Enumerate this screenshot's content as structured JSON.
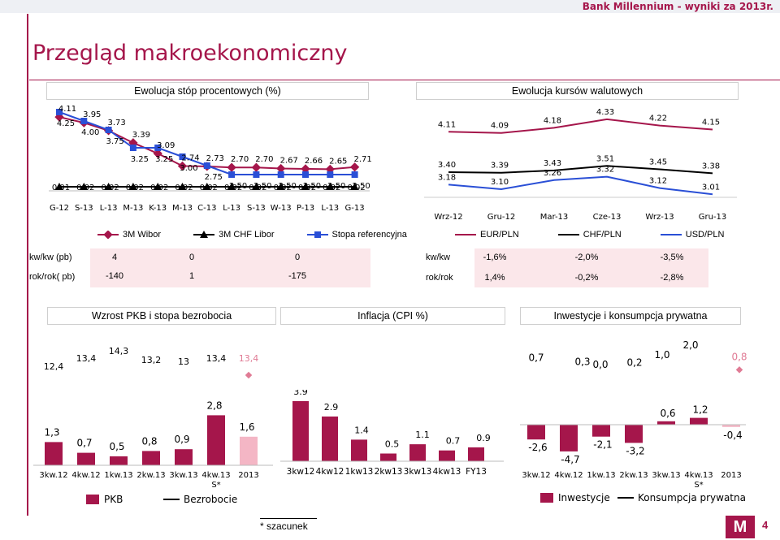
{
  "header": {
    "bank_text": "Bank Millennium - wyniki za 2013r."
  },
  "page_title": "Przegląd makroekonomiczny",
  "rates": {
    "title": "Ewolucja stóp procentowych (%)",
    "row_labels": [
      "kw/kw (pb)",
      "rok/rok( pb)"
    ],
    "rows": [
      [
        "4",
        "0",
        "0"
      ],
      [
        "-140",
        "1",
        "-175"
      ]
    ]
  },
  "fx": {
    "title": "Ewolucja kursów walutowych",
    "row_labels": [
      "kw/kw",
      "rok/rok"
    ],
    "rows": [
      [
        "-1,6%",
        "-2,0%",
        "-3,5%"
      ],
      [
        "1,4%",
        "-0,2%",
        "-2,8%"
      ]
    ]
  },
  "panels": {
    "gdp_title": "Wzrost PKB i stopa bezrobocia",
    "cpi_title": "Inflacja (CPI %)",
    "inv_title": "Inwestycje i konsumpcja prywatna"
  },
  "footnote": "* szacunek",
  "logo": "M",
  "page_number": "4",
  "colors": {
    "brand": "#a5164b",
    "blue": "#2a4fd6",
    "black": "#000000",
    "light_pink": "#f4b6c5"
  },
  "chart_data": [
    {
      "type": "line",
      "categories": [
        "G-12",
        "S-13",
        "L-13",
        "M-13",
        "K-13",
        "M-13",
        "C-13",
        "L-13",
        "S-13",
        "W-13",
        "P-13",
        "L-13",
        "G-13"
      ],
      "series": [
        {
          "name": "3M Wibor",
          "marker": "diamond",
          "color": "#a5164b",
          "values": [
            4.11,
            3.95,
            3.73,
            3.39,
            3.09,
            2.74,
            2.73,
            2.7,
            2.7,
            2.67,
            2.66,
            2.65,
            2.71
          ]
        },
        {
          "name": "3M CHF Libor",
          "marker": "triangle",
          "color": "#000000",
          "values": [
            0.01,
            0.02,
            0.02,
            0.02,
            0.02,
            0.02,
            0.02,
            0.02,
            0.02,
            0.02,
            0.02,
            0.02,
            0.02
          ]
        },
        {
          "name": "Stopa referencyjna",
          "marker": "square",
          "color": "#2a4fd6",
          "values": [
            4.25,
            4.0,
            3.75,
            3.25,
            3.25,
            3.0,
            2.75,
            2.5,
            2.5,
            2.5,
            2.5,
            2.5,
            2.5
          ]
        }
      ],
      "labels": [
        [
          "4.11",
          "3.95",
          "3.73",
          "3.39",
          "3.09",
          "2.74",
          "2.73",
          "2.70",
          "2.70",
          "2.67",
          "2.66",
          "2.65",
          "2.71"
        ],
        [
          "0.01",
          "0.02",
          "0.02",
          "0.02",
          "0.02",
          "0.02",
          "0.02",
          "0.02",
          "0.02",
          "0.02",
          "0.02",
          "0.02",
          "0.02"
        ],
        [
          "4.25",
          "4.00",
          "3.75",
          "3.25",
          "3.25",
          "3.00",
          "2.75",
          "2.50",
          "2.50",
          "2.50",
          "2.50",
          "2.50",
          "2.50"
        ]
      ]
    },
    {
      "type": "line",
      "categories": [
        "Wrz-12",
        "Gru-12",
        "Mar-13",
        "Cze-13",
        "Wrz-13",
        "Gru-13"
      ],
      "series": [
        {
          "name": "EUR/PLN",
          "color": "#a5164b",
          "values": [
            4.11,
            4.09,
            4.18,
            4.33,
            4.22,
            4.15
          ]
        },
        {
          "name": "CHF/PLN",
          "color": "#000000",
          "values": [
            3.4,
            3.39,
            3.43,
            3.51,
            3.45,
            3.38
          ]
        },
        {
          "name": "USD/PLN",
          "color": "#2a4fd6",
          "values": [
            3.18,
            3.1,
            3.26,
            3.32,
            3.12,
            3.01
          ]
        }
      ],
      "labels": [
        [
          "4.11",
          "4.09",
          "4.18",
          "4.33",
          "4.22",
          "4.15"
        ],
        [
          "3.40",
          "3.39",
          "3.43",
          "3.51",
          "3.45",
          "3.38"
        ],
        [
          "3.18",
          "3.10",
          "3.26",
          "3.32",
          "3.12",
          "3.01"
        ]
      ]
    },
    {
      "type": "bar",
      "categories": [
        "3kw.12",
        "4kw.12",
        "1kw.13",
        "2kw.13",
        "3kw.13",
        "4kw.13 S*",
        "2013"
      ],
      "series": [
        {
          "name": "PKB",
          "values": [
            1.3,
            0.7,
            0.5,
            0.8,
            0.9,
            2.8,
            1.6
          ],
          "labels": [
            "1,3",
            "0,7",
            "0,5",
            "0,8",
            "0,9",
            "2,8",
            "1,6"
          ]
        },
        {
          "name": "Bezrobocie",
          "values": [
            12.4,
            13.4,
            14.3,
            13.2,
            13.0,
            13.4,
            13.4
          ],
          "labels": [
            "12,4",
            "13,4",
            "14,3",
            "13,2",
            "13",
            "13,4",
            "13,4"
          ]
        }
      ]
    },
    {
      "type": "bar",
      "categories": [
        "3kw12",
        "4kw12",
        "1kw13",
        "2kw13",
        "3kw13",
        "4kw13",
        "FY13"
      ],
      "values": [
        3.9,
        2.9,
        1.4,
        0.5,
        1.1,
        0.7,
        0.9
      ],
      "labels": [
        "3.9",
        "2.9",
        "1.4",
        "0.5",
        "1.1",
        "0.7",
        "0.9"
      ]
    },
    {
      "type": "bar",
      "categories": [
        "3kw.12",
        "4kw.12",
        "1kw.13",
        "2kw.13",
        "3kw.13",
        "4kw.13 S*",
        "2013"
      ],
      "series": [
        {
          "name": "Inwestycje",
          "values": [
            -2.6,
            -4.7,
            -2.1,
            -3.2,
            0.6,
            1.2,
            -0.4
          ],
          "labels": [
            "-2,6",
            "-4,7",
            "-2,1",
            "-3,2",
            "0,6",
            "1,2",
            "-0,4"
          ]
        },
        {
          "name": "Konsumpcja prywatna",
          "values": [
            0.7,
            0.3,
            0.0,
            0.2,
            1.0,
            2.0,
            0.8
          ],
          "labels": [
            "0,7",
            "0,3",
            "0,0",
            "0,2",
            "1,0",
            "2,0",
            "0,8"
          ]
        }
      ]
    }
  ]
}
